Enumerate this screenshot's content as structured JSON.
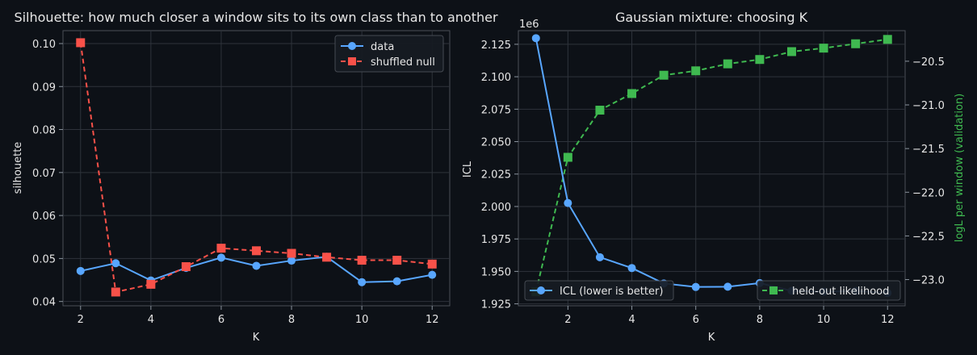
{
  "colors": {
    "background": "#0d1117",
    "panel": "#0d1117",
    "axis": "#4a4f57",
    "grid": "#2e333b",
    "text": "#e6e6e6",
    "data": "#58a6ff",
    "null": "#f85149",
    "icl": "#58a6ff",
    "loglik": "#3fb950"
  },
  "chart_data": [
    {
      "type": "line",
      "title": "Silhouette: how much closer a window sits to its own class than to another",
      "xlabel": "K",
      "ylabel": "silhouette",
      "xlim": [
        1.5,
        12.5
      ],
      "ylim": [
        0.039,
        0.103
      ],
      "xticks": [
        "2",
        "4",
        "6",
        "8",
        "10",
        "12"
      ],
      "yticks": [
        "0.04",
        "0.05",
        "0.06",
        "0.07",
        "0.08",
        "0.09",
        "0.10"
      ],
      "grid": true,
      "legend_position": "top-right",
      "x": [
        2,
        3,
        4,
        5,
        6,
        7,
        8,
        9,
        10,
        11,
        12
      ],
      "series": [
        {
          "name": "data",
          "style": "solid",
          "marker": "circle",
          "color": "#58a6ff",
          "values": [
            0.0471,
            0.0489,
            0.0449,
            0.0478,
            0.0502,
            0.0483,
            0.0495,
            0.0504,
            0.0445,
            0.0447,
            0.0462
          ]
        },
        {
          "name": "shuffled null",
          "style": "dashed",
          "marker": "square",
          "color": "#f85149",
          "values": [
            0.1002,
            0.0422,
            0.044,
            0.0481,
            0.0524,
            0.0518,
            0.0512,
            0.0503,
            0.0496,
            0.0496,
            0.0487
          ]
        }
      ]
    },
    {
      "type": "line",
      "title": "Gaussian mixture: choosing K",
      "xlabel": "K",
      "ylabel": "ICL",
      "y2label": "logL per window (validation)",
      "offset_text": "1e6",
      "xlim": [
        0.45,
        12.55
      ],
      "ylim": [
        1.9235,
        2.1355
      ],
      "y2lim": [
        -23.3,
        -20.15
      ],
      "xticks": [
        "2",
        "4",
        "6",
        "8",
        "10",
        "12"
      ],
      "yticks": [
        "1.925",
        "1.950",
        "1.975",
        "2.000",
        "2.025",
        "2.050",
        "2.075",
        "2.100",
        "2.125"
      ],
      "y2ticks": [
        "−23.0",
        "−22.5",
        "−22.0",
        "−21.5",
        "−21.0",
        "−20.5"
      ],
      "grid": true,
      "legend_position": "lower-left and lower-right",
      "x": [
        1,
        2,
        3,
        4,
        5,
        6,
        7,
        8,
        9,
        10,
        11,
        12
      ],
      "series": [
        {
          "name": "ICL (lower is better)",
          "axis": "left",
          "style": "solid",
          "marker": "circle",
          "color": "#58a6ff",
          "values": [
            2.1297,
            2.0027,
            1.9609,
            1.9526,
            1.9407,
            1.938,
            1.9382,
            1.941,
            1.935,
            1.9343,
            1.9349,
            1.9334
          ]
        },
        {
          "name": "held-out likelihood",
          "axis": "right",
          "style": "dashed",
          "marker": "square",
          "color": "#3fb950",
          "values": [
            -23.14,
            -21.6,
            -21.06,
            -20.87,
            -20.66,
            -20.61,
            -20.53,
            -20.48,
            -20.39,
            -20.35,
            -20.3,
            -20.25
          ]
        }
      ]
    }
  ]
}
